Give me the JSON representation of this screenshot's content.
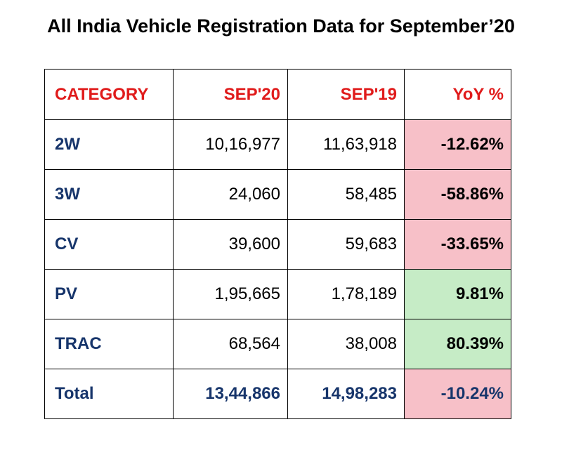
{
  "title": "All India Vehicle Registration Data for September’20",
  "headers": {
    "category": "CATEGORY",
    "sep20": "SEP'20",
    "sep19": "SEP'19",
    "yoy": "YoY %"
  },
  "rows": [
    {
      "category": "2W",
      "sep20": "10,16,977",
      "sep19": "11,63,918",
      "yoy": "-12.62%"
    },
    {
      "category": "3W",
      "sep20": "24,060",
      "sep19": "58,485",
      "yoy": "-58.86%"
    },
    {
      "category": "CV",
      "sep20": "39,600",
      "sep19": "59,683",
      "yoy": "-33.65%"
    },
    {
      "category": "PV",
      "sep20": "1,95,665",
      "sep19": "1,78,189",
      "yoy": "9.81%"
    },
    {
      "category": "TRAC",
      "sep20": "68,564",
      "sep19": "38,008",
      "yoy": "80.39%"
    }
  ],
  "total": {
    "category": "Total",
    "sep20": "13,44,866",
    "sep19": "14,98,283",
    "yoy": "-10.24%"
  },
  "colors": {
    "header_text": "#e01b1b",
    "category_text": "#17356b",
    "negative_fill": "#f7c0c8",
    "positive_fill": "#c6ecc6"
  }
}
